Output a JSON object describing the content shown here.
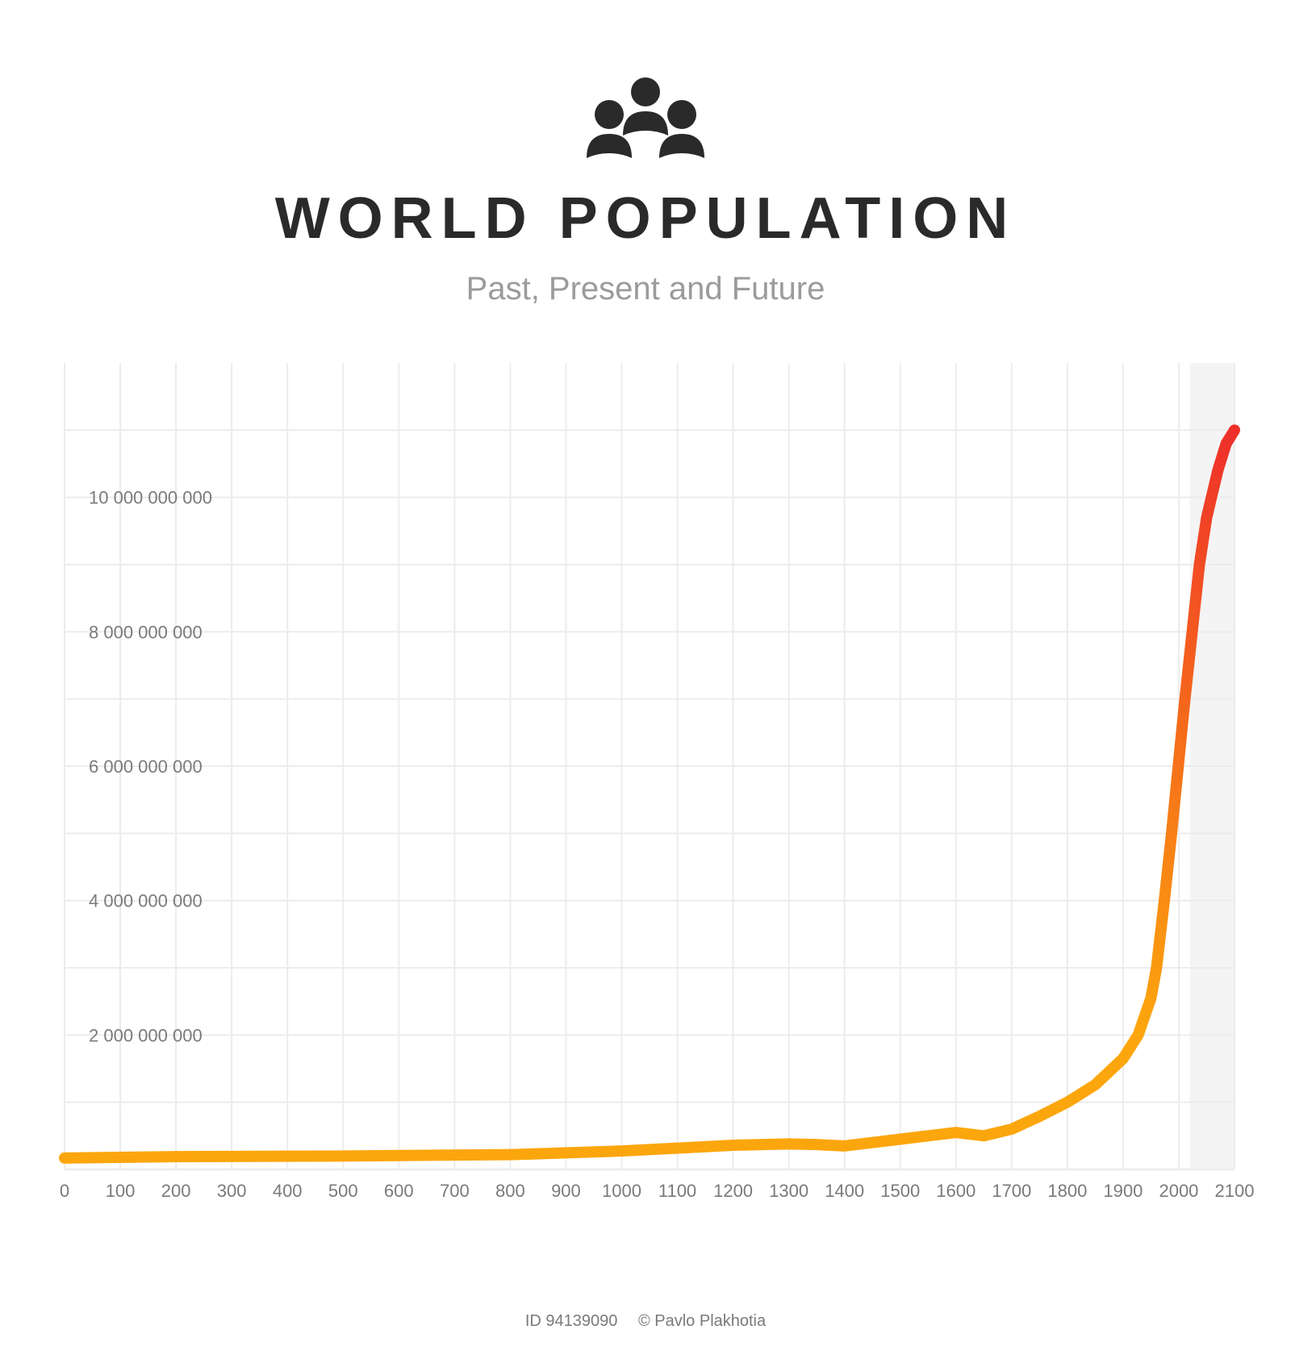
{
  "header": {
    "title": "WORLD POPULATION",
    "subtitle": "Past, Present and Future",
    "icon_color": "#2a2a2a"
  },
  "chart": {
    "type": "line",
    "background_color": "#ffffff",
    "grid_color": "#ececec",
    "future_band_color": "#f4f4f4",
    "axis_label_color": "#7a7a7a",
    "axis_label_fontsize": 22,
    "title_color": "#2a2a2a",
    "subtitle_color": "#9b9b9b",
    "line_width": 14,
    "line_cap": "round",
    "gradient_start": "#fca60d",
    "gradient_end": "#ee2f2a",
    "xlim": [
      0,
      2100
    ],
    "ylim": [
      0,
      12000000000
    ],
    "x_ticks": [
      0,
      100,
      200,
      300,
      400,
      500,
      600,
      700,
      800,
      900,
      1000,
      1100,
      1200,
      1300,
      1400,
      1500,
      1600,
      1700,
      1800,
      1900,
      2000,
      2100
    ],
    "x_tick_labels": [
      "0",
      "100",
      "200",
      "300",
      "400",
      "500",
      "600",
      "700",
      "800",
      "900",
      "1000",
      "1100",
      "1200",
      "1300",
      "1400",
      "1500",
      "1600",
      "1700",
      "1800",
      "1900",
      "2000",
      "2100"
    ],
    "y_ticks": [
      2000000000,
      4000000000,
      6000000000,
      8000000000,
      10000000000
    ],
    "y_tick_labels": [
      "2 000 000 000",
      "4 000 000 000",
      "6 000 000 000",
      "8 000 000 000",
      "10 000 000 000"
    ],
    "future_start_x": 2020,
    "series": {
      "x": [
        0,
        200,
        500,
        800,
        1000,
        1200,
        1300,
        1350,
        1400,
        1500,
        1600,
        1650,
        1700,
        1750,
        1800,
        1850,
        1900,
        1927,
        1950,
        1960,
        1974,
        1987,
        1999,
        2011,
        2024,
        2037,
        2050,
        2070,
        2085,
        2100
      ],
      "y": [
        170000000,
        190000000,
        200000000,
        220000000,
        275000000,
        360000000,
        380000000,
        370000000,
        350000000,
        450000000,
        550000000,
        500000000,
        600000000,
        790000000,
        1000000000,
        1260000000,
        1650000000,
        2000000000,
        2550000000,
        3000000000,
        4000000000,
        5000000000,
        6000000000,
        7000000000,
        8000000000,
        9000000000,
        9700000000,
        10400000000,
        10800000000,
        11000000000
      ]
    }
  },
  "footer": {
    "id_label": "ID 94139090",
    "author": "Pavlo Plakhotia"
  }
}
